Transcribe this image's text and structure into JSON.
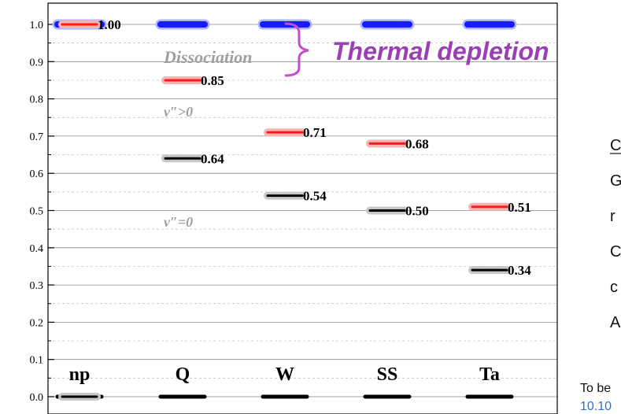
{
  "chart_data": {
    "type": "scatter",
    "categories": [
      "np",
      "Q",
      "W",
      "SS",
      "Ta"
    ],
    "ylim": [
      0.0,
      1.0
    ],
    "yticks": [
      "0.0",
      "0.1",
      "0.2",
      "0.3",
      "0.4",
      "0.5",
      "0.6",
      "0.7",
      "0.8",
      "0.9",
      "1.0"
    ],
    "grid": true,
    "series": [
      {
        "color": "#1a1aff",
        "halo": "#a9b4ff",
        "values": [
          1.0,
          1.0,
          1.0,
          1.0,
          1.0
        ],
        "labels": [
          "1.00",
          "",
          "",
          "",
          ""
        ]
      },
      {
        "color": "#ff1a1a",
        "halo": "#f7b3b3",
        "values": [
          1.0,
          0.85,
          0.71,
          0.68,
          0.51
        ],
        "labels": [
          "",
          "0.85",
          "0.71",
          "0.68",
          "0.51"
        ]
      },
      {
        "color": "#000000",
        "halo": "#c8c8c8",
        "values": [
          0.0,
          0.64,
          0.54,
          0.5,
          0.34
        ],
        "labels": [
          "",
          "0.64",
          "0.54",
          "0.50",
          "0.34"
        ]
      }
    ],
    "black_baseline": {
      "color": "#000000",
      "values": [
        0.0,
        0.0,
        0.0,
        0.0,
        0.0
      ]
    },
    "annotations": {
      "dissociation": "Dissociation",
      "thermal_depletion": "Thermal depletion",
      "v_gt_0": "v″>0",
      "v_eq_0": "v″=0",
      "bracket_color": "#c24fc8"
    }
  },
  "side_panel": {
    "lines": [
      "C",
      "G",
      "r",
      "C",
      "c",
      "A"
    ]
  },
  "footer": {
    "text": "To be",
    "link": "10.10"
  }
}
